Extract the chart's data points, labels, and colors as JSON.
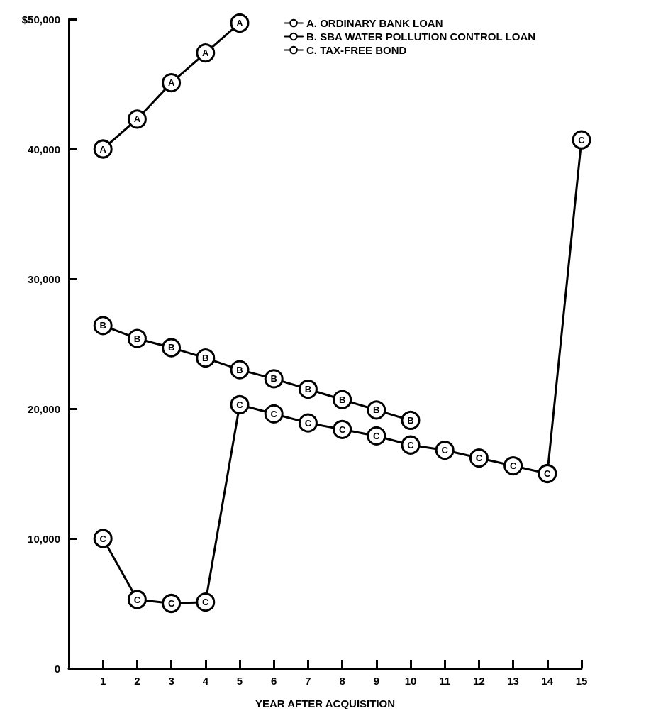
{
  "chart_data": {
    "type": "line",
    "xlabel": "YEAR AFTER ACQUISITION",
    "x": [
      1,
      2,
      3,
      4,
      5,
      6,
      7,
      8,
      9,
      10,
      11,
      12,
      13,
      14,
      15
    ],
    "series": [
      {
        "name": "A. ORDINARY BANK LOAN",
        "color": "#000000",
        "x": [
          1,
          2,
          3,
          4,
          5
        ],
        "values": [
          40000,
          42300,
          45100,
          47400,
          49700
        ],
        "value_labels": [
          "A",
          "A",
          "A",
          "A",
          "A"
        ]
      },
      {
        "name": "B. SBA WATER POLLUTION CONTROL LOAN",
        "color": "#000000",
        "x": [
          1,
          2,
          3,
          4,
          5,
          6,
          7,
          8,
          9,
          10
        ],
        "values": [
          26400,
          25400,
          24700,
          23900,
          23000,
          22300,
          21500,
          20700,
          19900,
          19100
        ],
        "value_labels": [
          "B",
          "B",
          "B",
          "B",
          "B",
          "B",
          "B",
          "B",
          "B",
          "B"
        ]
      },
      {
        "name": "C. TAX-FREE BOND",
        "color": "#000000",
        "values": [
          10000,
          5300,
          5000,
          5100,
          20300,
          19600,
          18900,
          18400,
          17900,
          17200,
          16800,
          16200,
          15600,
          15000,
          40700
        ],
        "value_labels": [
          "C",
          "C",
          "C",
          "C",
          "C",
          "C",
          "C",
          "C",
          "C",
          "C",
          "C",
          "C",
          "C",
          "C",
          "C"
        ]
      }
    ],
    "xlim": [
      0,
      15
    ],
    "xticks": [
      1,
      2,
      3,
      4,
      5,
      6,
      7,
      8,
      9,
      10,
      11,
      12,
      13,
      14,
      15
    ],
    "ylim": [
      0,
      50000
    ],
    "yticks": [
      {
        "value": 0,
        "label": "0"
      },
      {
        "value": 10000,
        "label": "10,000"
      },
      {
        "value": 20000,
        "label": "20,000"
      },
      {
        "value": 30000,
        "label": "30,000"
      },
      {
        "value": 40000,
        "label": "40,000"
      },
      {
        "value": 50000,
        "label": "$50,000"
      }
    ],
    "grid": false,
    "legend": "top right",
    "marker": "circle",
    "line_style": "solid"
  }
}
